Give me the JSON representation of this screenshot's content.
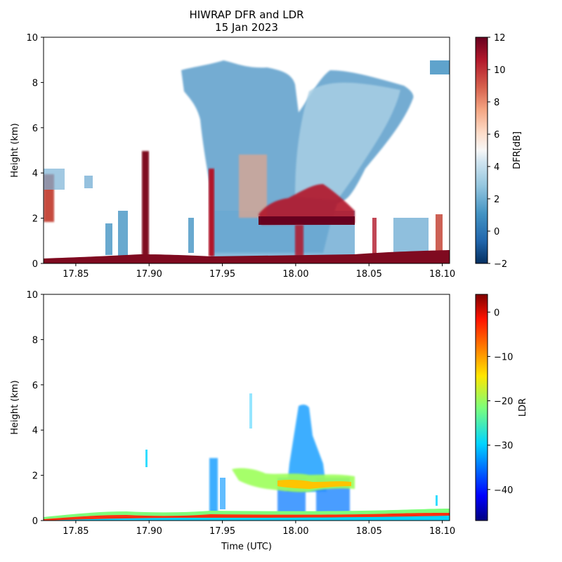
{
  "figure": {
    "title_line1": "HIWRAP DFR and LDR",
    "title_line2": "15 Jan 2023"
  },
  "chart_data": [
    {
      "type": "heatmap",
      "name": "DFR panel",
      "xlabel": "",
      "ylabel": "Height (km)",
      "xlim": [
        17.828,
        18.105
      ],
      "ylim": [
        0,
        10
      ],
      "x_ticks": [
        17.85,
        17.9,
        17.95,
        18.0,
        18.05,
        18.1
      ],
      "x_tick_labels": [
        "17.85",
        "17.90",
        "17.95",
        "18.00",
        "18.05",
        "18.10"
      ],
      "y_ticks": [
        0,
        2,
        4,
        6,
        8,
        10
      ],
      "y_tick_labels": [
        "0",
        "2",
        "4",
        "6",
        "8",
        "10"
      ],
      "colorbar": {
        "label": "DFR[dB]",
        "range": [
          -2,
          12
        ],
        "colormap": "RdBu_r",
        "ticks": [
          -2,
          0,
          2,
          4,
          6,
          8,
          10,
          12
        ],
        "tick_labels": [
          "−2",
          "0",
          "2",
          "4",
          "6",
          "8",
          "10",
          "12"
        ]
      },
      "features": [
        {
          "desc": "surface band",
          "x": [
            17.828,
            18.105
          ],
          "y": [
            0,
            0.35
          ],
          "value": 12
        },
        {
          "desc": "upper cloud",
          "x": [
            17.925,
            18.025
          ],
          "y": [
            0.4,
            8.8
          ],
          "value": 2
        },
        {
          "desc": "upper cloud right",
          "x": [
            18.01,
            18.075
          ],
          "y": [
            2.5,
            8.3
          ],
          "value": 3
        },
        {
          "desc": "melting layer",
          "x": [
            17.97,
            18.04
          ],
          "y": [
            1.6,
            2.4
          ],
          "value": 11
        },
        {
          "desc": "left echo",
          "x": [
            17.828,
            17.843
          ],
          "y": [
            1.9,
            4.1
          ],
          "value": 10
        },
        {
          "desc": "convective column",
          "x": [
            17.897,
            17.903
          ],
          "y": [
            0.4,
            5.0
          ],
          "value": 12
        },
        {
          "desc": "column",
          "x": [
            17.942,
            17.948
          ],
          "y": [
            0.4,
            4.2
          ],
          "value": 12
        }
      ]
    },
    {
      "type": "heatmap",
      "name": "LDR panel",
      "xlabel": "Time (UTC)",
      "ylabel": "Height (km)",
      "xlim": [
        17.828,
        18.105
      ],
      "ylim": [
        0,
        10
      ],
      "x_ticks": [
        17.85,
        17.9,
        17.95,
        18.0,
        18.05,
        18.1
      ],
      "x_tick_labels": [
        "17.85",
        "17.90",
        "17.95",
        "18.00",
        "18.05",
        "18.10"
      ],
      "y_ticks": [
        0,
        2,
        4,
        6,
        8,
        10
      ],
      "y_tick_labels": [
        "0",
        "2",
        "4",
        "6",
        "8",
        "10"
      ],
      "colorbar": {
        "label": "LDR",
        "range": [
          -47,
          4
        ],
        "colormap": "jet",
        "ticks": [
          -40,
          -30,
          -20,
          -10,
          0
        ],
        "tick_labels": [
          "−40",
          "−30",
          "−20",
          "−10",
          "0"
        ]
      },
      "features": [
        {
          "desc": "surface band",
          "x": [
            17.828,
            18.105
          ],
          "y": [
            0,
            0.45
          ],
          "value": -25
        },
        {
          "desc": "bright band",
          "x": [
            17.965,
            18.04
          ],
          "y": [
            1.4,
            2.2
          ],
          "value": -12
        },
        {
          "desc": "tall plume",
          "x": [
            18.0,
            18.012
          ],
          "y": [
            0.3,
            5.2
          ],
          "value": -33
        },
        {
          "desc": "columns",
          "x": [
            17.988,
            18.035
          ],
          "y": [
            0.3,
            2.0
          ],
          "value": -32
        },
        {
          "desc": "small column",
          "x": [
            17.942,
            17.95
          ],
          "y": [
            0.3,
            2.8
          ],
          "value": -32
        }
      ]
    }
  ]
}
